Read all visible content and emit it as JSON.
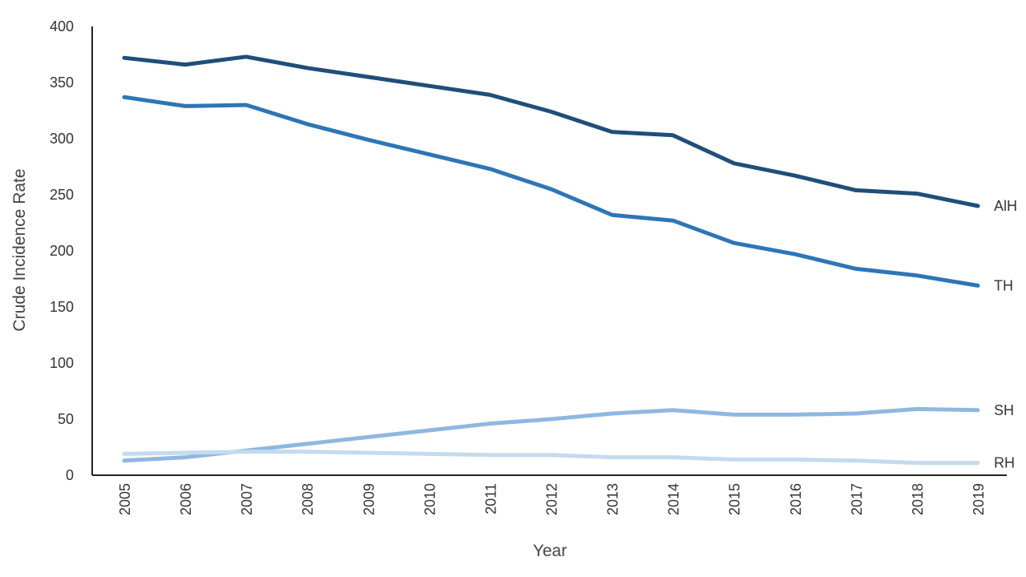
{
  "chart_data": {
    "type": "line",
    "title": "",
    "xlabel": "Year",
    "ylabel": "Crude Incidence Rate",
    "x": [
      "2005",
      "2006",
      "2007",
      "2008",
      "2009",
      "2010",
      "2011",
      "2012",
      "2013",
      "2014",
      "2015",
      "2016",
      "2017",
      "2018",
      "2019"
    ],
    "ylim": [
      0,
      400
    ],
    "yticks": [
      0,
      50,
      100,
      150,
      200,
      250,
      300,
      350,
      400
    ],
    "ytick_labels": [
      "0",
      "50",
      "100",
      "150",
      "200",
      "250",
      "300",
      "350",
      "400"
    ],
    "grid": false,
    "legend": "labels at line ends (right)",
    "series": [
      {
        "name": "AlH",
        "color": "#1f4e79",
        "values": [
          372,
          366,
          373,
          363,
          355,
          347,
          339,
          324,
          306,
          303,
          278,
          267,
          254,
          251,
          240
        ]
      },
      {
        "name": "TH",
        "color": "#2e75b6",
        "values": [
          337,
          329,
          330,
          313,
          299,
          286,
          273,
          255,
          232,
          227,
          207,
          197,
          184,
          178,
          169
        ]
      },
      {
        "name": "SH",
        "color": "#8fb8e0",
        "values": [
          13,
          16,
          22,
          28,
          34,
          40,
          46,
          50,
          55,
          58,
          54,
          54,
          55,
          59,
          58
        ]
      },
      {
        "name": "RH",
        "color": "#c5daee",
        "values": [
          19,
          20,
          21,
          21,
          20,
          19,
          18,
          18,
          16,
          16,
          14,
          14,
          13,
          11,
          11
        ]
      }
    ]
  }
}
